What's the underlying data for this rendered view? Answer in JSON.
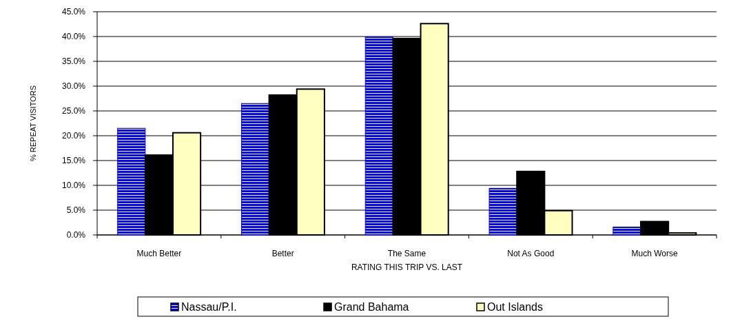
{
  "chart_data": {
    "type": "bar",
    "xlabel": "RATING THIS TRIP VS. LAST",
    "ylabel": "% REPEAT VISITORS",
    "categories": [
      "Much Better",
      "Better",
      "The Same",
      "Not As Good",
      "Much Worse"
    ],
    "series": [
      {
        "name": "Nassau/P.I.",
        "color": "#0000ff",
        "values": [
          21.5,
          26.5,
          39.9,
          9.4,
          1.6
        ]
      },
      {
        "name": "Grand Bahama",
        "color": "#000000",
        "values": [
          16.1,
          28.2,
          39.6,
          12.8,
          2.7
        ]
      },
      {
        "name": "Out Islands",
        "color": "#ffffc0",
        "values": [
          20.6,
          29.4,
          42.6,
          4.9,
          0.4
        ]
      }
    ],
    "ylim": [
      0,
      45
    ],
    "yticks": [
      {
        "value": 0,
        "label": "0.0%"
      },
      {
        "value": 5,
        "label": "5.0%"
      },
      {
        "value": 10,
        "label": "10.0%"
      },
      {
        "value": 15,
        "label": "15.0%"
      },
      {
        "value": 20,
        "label": "20.0%"
      },
      {
        "value": 25,
        "label": "25.0%"
      },
      {
        "value": 30,
        "label": "30.0%"
      },
      {
        "value": 35,
        "label": "35.0%"
      },
      {
        "value": 40,
        "label": "40.0%"
      },
      {
        "value": 45,
        "label": "45.0%"
      }
    ],
    "grid": "y",
    "legend": "bottom"
  }
}
